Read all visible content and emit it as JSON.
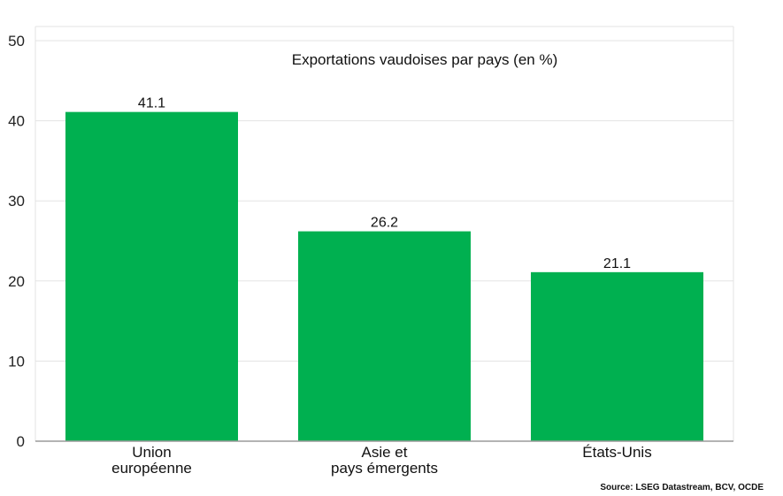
{
  "chart_data": {
    "type": "bar",
    "title": "Exportations vaudoises par pays (en %)",
    "categories": [
      [
        "Union",
        "européenne"
      ],
      [
        "Asie et",
        "pays émergents"
      ],
      [
        "États-Unis"
      ]
    ],
    "values": [
      41.1,
      26.2,
      21.1
    ],
    "data_labels": [
      "41.1",
      "26.2",
      "21.1"
    ],
    "ylim": [
      0,
      50
    ],
    "yticks": [
      0,
      10,
      20,
      30,
      40,
      50
    ],
    "grid": true,
    "bar_color": "#00b050",
    "grid_color": "#e3e3e3",
    "axis_color": "#9a9a9a"
  },
  "source": "Source: LSEG Datastream, BCV, OCDE"
}
